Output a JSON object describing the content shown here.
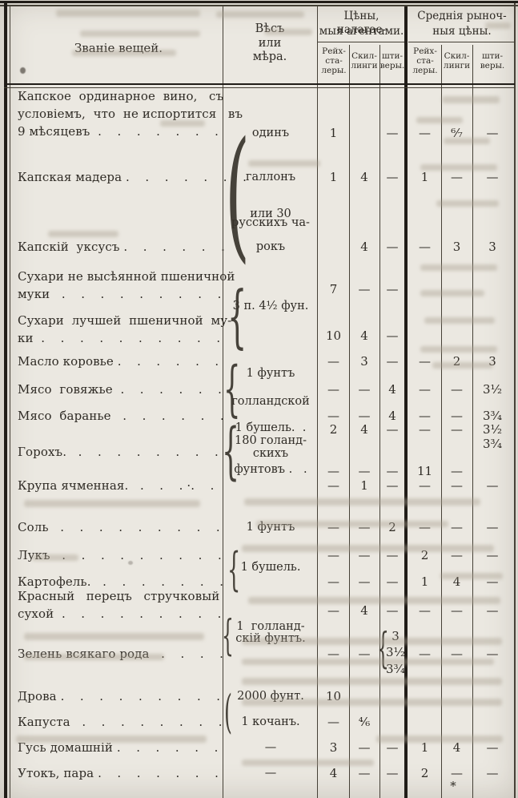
{
  "paper": {
    "background": "#ebe8e1",
    "ink": "#2f2b25",
    "line_color": "#454036"
  },
  "header": {
    "items_col": "Званіе вещей.",
    "measure_col": [
      "Вѣсъ",
      "или",
      "мѣра."
    ],
    "agents_group": [
      "Цѣны, налагае-",
      "мыя агентами."
    ],
    "market_group": [
      "Среднія рыноч-",
      "ныя цѣны."
    ],
    "subcols": [
      [
        "Рейх-",
        "ста-",
        "леры."
      ],
      [
        "Скил-",
        "линги"
      ],
      [
        "шти-",
        "веры."
      ]
    ]
  },
  "table": {
    "entries": [
      {
        "label": [
          "Капское  ординарное  вино,   съ",
          "условіемъ,  что  не испортится   въ",
          "9 мѣсяцевъ  .    .    .    .    .    .    ."
        ],
        "measure": [
          "одинъ"
        ],
        "agent": [
          "1",
          "",
          "—"
        ],
        "market": [
          "—",
          "⁶⁄₇",
          "—"
        ]
      },
      {
        "label": [
          "Капская мадера .    .    .    .    .    .    ."
        ],
        "measure": [
          "галлонъ"
        ],
        "agent": [
          "1",
          "4",
          "—"
        ],
        "market": [
          "1",
          "—",
          "—"
        ]
      },
      {
        "measure": [
          "или 30"
        ]
      },
      {
        "measure": [
          "русскихъ ча-"
        ]
      },
      {
        "label": [
          "Капскій  уксусъ .    .    .    .    .    ."
        ],
        "measure": [
          "рокъ"
        ],
        "agent": [
          "",
          "4",
          "—"
        ],
        "market": [
          "—",
          "3",
          "3"
        ]
      },
      {
        "label": [
          "Сухари не высѣянной пшеничной",
          "муки   .    .    .    .    .    .    .    .    ."
        ],
        "agent": [
          "7",
          "—",
          "—"
        ]
      },
      {
        "measure": [
          "3 п. 4¹⁄₂ фун."
        ]
      },
      {
        "label": [
          "Сухари  лучшей  пшеничной  му-",
          "ки  .    .    .    .    .    .    .    .    .    ."
        ],
        "agent": [
          "10",
          "4",
          "—"
        ]
      },
      {
        "label": [
          "Масло коровье .    .    .    .    .    ."
        ],
        "agent": [
          "—",
          "3",
          "—"
        ],
        "market": [
          "—",
          "2",
          "3"
        ]
      },
      {
        "measure": [
          "1 фунтъ"
        ]
      },
      {
        "label": [
          "Мясо  говяжье  .    .    .    .    .    ."
        ],
        "agent": [
          "—",
          "—",
          "4"
        ],
        "market": [
          "—",
          "—",
          "3¹⁄₂"
        ]
      },
      {
        "measure": [
          "голландской"
        ]
      },
      {
        "label": [
          "Мясо  баранье   .    .    .    .    .    ."
        ],
        "agent": [
          "—",
          "—",
          "4"
        ],
        "market": [
          "—",
          "—",
          "3³⁄₄"
        ]
      },
      {
        "measure": [
          "1 бушель.  ."
        ],
        "agent": [
          "2",
          "4",
          "—"
        ],
        "market": [
          "—",
          "—",
          "3¹⁄₂"
        ]
      },
      {
        "measure": [
          "180 голанд-"
        ],
        "market": [
          "",
          "",
          "3³⁄₄"
        ]
      },
      {
        "label": [
          "Горохъ.   .    .    .    .    .    .    .    ."
        ],
        "measure": [
          "скихъ"
        ]
      },
      {
        "measure": [
          "фунтовъ .   ."
        ],
        "agent": [
          "—",
          "—",
          "—"
        ],
        "market": [
          "11",
          "—",
          ""
        ]
      },
      {
        "label": [
          "Крупа ячменная.   .    .    . ·.    ."
        ],
        "agent": [
          "—",
          "1",
          "—"
        ],
        "market": [
          "—",
          "—",
          "—"
        ]
      },
      {
        "label": [
          "Соль   .    .    .    .    .    .    .    .    ."
        ],
        "measure": [
          "1 фунтъ"
        ],
        "agent": [
          "—",
          "—",
          "2"
        ],
        "market": [
          "—",
          "—",
          "—"
        ]
      },
      {
        "label": [
          "Лукъ   .    .    .    .    .    .    .    .    ."
        ],
        "agent": [
          "—",
          "—",
          "—"
        ],
        "market": [
          "2",
          "—",
          "—"
        ]
      },
      {
        "measure": [
          "1 бушель."
        ]
      },
      {
        "label": [
          "Картофель.   .    .    .    .    .    .    ."
        ],
        "agent": [
          "—",
          "—",
          "—"
        ],
        "market": [
          "1",
          "4",
          "—"
        ]
      },
      {
        "label": [
          "Красный   перецъ   стручковый",
          "сухой  .    .    .    .    .    .    .    .    ."
        ],
        "agent": [
          "—",
          "4",
          "—"
        ],
        "market": [
          "—",
          "—",
          "—"
        ]
      },
      {
        "measure": [
          "1  голланд-"
        ]
      },
      {
        "measure": [
          "скій фунтъ."
        ]
      },
      {
        "label": [
          "Зелень всякаго рода   .    .    .    ."
        ],
        "agent": [
          "—",
          "—",
          ""
        ],
        "market": [
          "—",
          "—",
          "—"
        ],
        "stack": [
          "3",
          "3¹⁄₂",
          "3³⁄₄"
        ]
      },
      {
        "label": [
          "Дрова .    .    .    .    .    .    .    .    ."
        ],
        "measure": [
          "2000 фунт."
        ],
        "agent": [
          "10",
          "",
          ""
        ]
      },
      {
        "label": [
          "Капуста   .    .    .    .    .    .    .    ."
        ],
        "measure": [
          "1 кочанъ."
        ],
        "agent": [
          "—",
          "⁴⁄₆",
          ""
        ]
      },
      {
        "label": [
          "Гусь домашній .    .    .    .    .    ."
        ],
        "measure": [
          "—"
        ],
        "agent": [
          "3",
          "—",
          "—"
        ],
        "market": [
          "1",
          "4",
          "—"
        ]
      },
      {
        "label": [
          "Утокъ, пара .    .    .    .    .    .    ."
        ],
        "measure": [
          "—"
        ],
        "agent": [
          "4",
          "—",
          "—"
        ],
        "market": [
          "2",
          "—",
          "—"
        ]
      }
    ]
  },
  "footnote": {
    "mark": "*"
  }
}
